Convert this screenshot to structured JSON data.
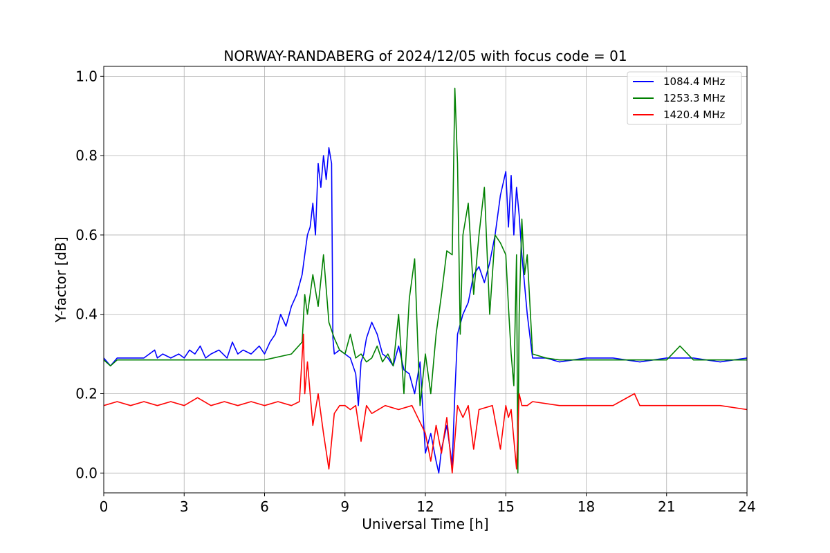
{
  "chart_data": {
    "type": "line",
    "title": "NORWAY-RANDABERG of 2024/12/05 with focus code = 01",
    "xlabel": "Universal Time [h]",
    "ylabel": "Y-factor [dB]",
    "xlim": [
      0,
      24
    ],
    "ylim": [
      -0.05,
      1.025
    ],
    "xticks": [
      0,
      3,
      6,
      9,
      12,
      15,
      18,
      21,
      24
    ],
    "yticks": [
      0.0,
      0.2,
      0.4,
      0.6,
      0.8,
      1.0
    ],
    "ytick_labels": [
      "0.0",
      "0.2",
      "0.4",
      "0.6",
      "0.8",
      "1.0"
    ],
    "grid": true,
    "legend_position": "top-right",
    "series": [
      {
        "name": "1084.4 MHz",
        "color": "#0000ff",
        "x": [
          0,
          0.25,
          0.5,
          1.0,
          1.5,
          1.9,
          2.0,
          2.2,
          2.5,
          2.8,
          3.0,
          3.2,
          3.4,
          3.6,
          3.8,
          4.0,
          4.3,
          4.6,
          4.8,
          5.0,
          5.2,
          5.5,
          5.8,
          6.0,
          6.2,
          6.4,
          6.6,
          6.8,
          7.0,
          7.2,
          7.4,
          7.5,
          7.6,
          7.7,
          7.8,
          7.9,
          8.0,
          8.1,
          8.2,
          8.3,
          8.4,
          8.5,
          8.55,
          8.6,
          8.8,
          9.0,
          9.2,
          9.4,
          9.5,
          9.6,
          9.7,
          9.8,
          10.0,
          10.2,
          10.4,
          10.6,
          10.8,
          11.0,
          11.2,
          11.4,
          11.6,
          11.8,
          12.0,
          12.2,
          12.4,
          12.5,
          12.6,
          12.8,
          13.0,
          13.1,
          13.2,
          13.4,
          13.6,
          13.8,
          14.0,
          14.2,
          14.4,
          14.6,
          14.8,
          15.0,
          15.1,
          15.2,
          15.3,
          15.4,
          15.5,
          15.6,
          15.8,
          16.0,
          16.5,
          17.0,
          18.0,
          19.0,
          20.0,
          21.0,
          22.0,
          23.0,
          24.0
        ],
        "y": [
          0.29,
          0.27,
          0.29,
          0.29,
          0.29,
          0.31,
          0.29,
          0.3,
          0.29,
          0.3,
          0.29,
          0.31,
          0.3,
          0.32,
          0.29,
          0.3,
          0.31,
          0.29,
          0.33,
          0.3,
          0.31,
          0.3,
          0.32,
          0.3,
          0.33,
          0.35,
          0.4,
          0.37,
          0.42,
          0.45,
          0.5,
          0.55,
          0.6,
          0.62,
          0.68,
          0.6,
          0.78,
          0.72,
          0.8,
          0.74,
          0.82,
          0.78,
          0.34,
          0.3,
          0.31,
          0.3,
          0.29,
          0.25,
          0.17,
          0.28,
          0.3,
          0.34,
          0.38,
          0.35,
          0.3,
          0.29,
          0.27,
          0.32,
          0.26,
          0.25,
          0.2,
          0.28,
          0.05,
          0.1,
          0.03,
          0.0,
          0.06,
          0.12,
          0.02,
          0.2,
          0.35,
          0.4,
          0.43,
          0.5,
          0.52,
          0.48,
          0.53,
          0.6,
          0.7,
          0.76,
          0.62,
          0.75,
          0.6,
          0.72,
          0.65,
          0.55,
          0.4,
          0.29,
          0.29,
          0.28,
          0.29,
          0.29,
          0.28,
          0.29,
          0.29,
          0.28,
          0.29
        ]
      },
      {
        "name": "1253.3 MHz",
        "color": "#008000",
        "x": [
          0,
          0.25,
          0.5,
          1.0,
          2.0,
          3.0,
          4.0,
          5.0,
          6.0,
          7.0,
          7.4,
          7.5,
          7.6,
          7.8,
          8.0,
          8.2,
          8.4,
          8.6,
          8.8,
          9.0,
          9.2,
          9.4,
          9.6,
          9.8,
          10.0,
          10.2,
          10.4,
          10.6,
          10.8,
          11.0,
          11.2,
          11.4,
          11.6,
          11.8,
          12.0,
          12.2,
          12.4,
          12.6,
          12.8,
          13.0,
          13.1,
          13.2,
          13.3,
          13.4,
          13.6,
          13.8,
          14.0,
          14.2,
          14.4,
          14.6,
          14.8,
          15.0,
          15.1,
          15.2,
          15.3,
          15.4,
          15.45,
          15.5,
          15.6,
          15.7,
          15.8,
          16.0,
          16.5,
          17.0,
          18.0,
          19.0,
          20.0,
          21.0,
          21.5,
          22.0,
          23.0,
          24.0
        ],
        "y": [
          0.285,
          0.27,
          0.285,
          0.285,
          0.285,
          0.285,
          0.285,
          0.285,
          0.285,
          0.3,
          0.33,
          0.45,
          0.4,
          0.5,
          0.42,
          0.55,
          0.38,
          0.34,
          0.31,
          0.3,
          0.35,
          0.29,
          0.3,
          0.28,
          0.29,
          0.32,
          0.28,
          0.3,
          0.27,
          0.4,
          0.2,
          0.44,
          0.54,
          0.17,
          0.3,
          0.2,
          0.35,
          0.45,
          0.56,
          0.55,
          0.97,
          0.78,
          0.35,
          0.6,
          0.68,
          0.45,
          0.6,
          0.72,
          0.4,
          0.6,
          0.58,
          0.55,
          0.42,
          0.3,
          0.22,
          0.55,
          0.0,
          0.4,
          0.64,
          0.5,
          0.55,
          0.3,
          0.29,
          0.285,
          0.285,
          0.285,
          0.285,
          0.285,
          0.32,
          0.285,
          0.285,
          0.285
        ]
      },
      {
        "name": "1420.4 MHz",
        "color": "#ff0000",
        "x": [
          0,
          0.5,
          1.0,
          1.5,
          2.0,
          2.5,
          3.0,
          3.5,
          4.0,
          4.5,
          5.0,
          5.5,
          6.0,
          6.5,
          7.0,
          7.3,
          7.45,
          7.5,
          7.6,
          7.8,
          8.0,
          8.2,
          8.4,
          8.6,
          8.8,
          9.0,
          9.2,
          9.4,
          9.6,
          9.8,
          10.0,
          10.5,
          11.0,
          11.5,
          12.0,
          12.2,
          12.4,
          12.6,
          12.8,
          13.0,
          13.2,
          13.4,
          13.6,
          13.8,
          14.0,
          14.5,
          14.8,
          15.0,
          15.1,
          15.2,
          15.4,
          15.5,
          15.6,
          15.8,
          16.0,
          17.0,
          18.0,
          19.0,
          19.8,
          20.0,
          21.0,
          22.0,
          23.0,
          24.0
        ],
        "y": [
          0.17,
          0.18,
          0.17,
          0.18,
          0.17,
          0.18,
          0.17,
          0.19,
          0.17,
          0.18,
          0.17,
          0.18,
          0.17,
          0.18,
          0.17,
          0.18,
          0.35,
          0.2,
          0.28,
          0.12,
          0.2,
          0.1,
          0.01,
          0.15,
          0.17,
          0.17,
          0.16,
          0.17,
          0.08,
          0.17,
          0.15,
          0.17,
          0.16,
          0.17,
          0.1,
          0.03,
          0.12,
          0.05,
          0.14,
          0.0,
          0.17,
          0.14,
          0.17,
          0.06,
          0.16,
          0.17,
          0.06,
          0.17,
          0.14,
          0.16,
          0.01,
          0.2,
          0.17,
          0.17,
          0.18,
          0.17,
          0.17,
          0.17,
          0.2,
          0.17,
          0.17,
          0.17,
          0.17,
          0.16
        ]
      }
    ]
  }
}
